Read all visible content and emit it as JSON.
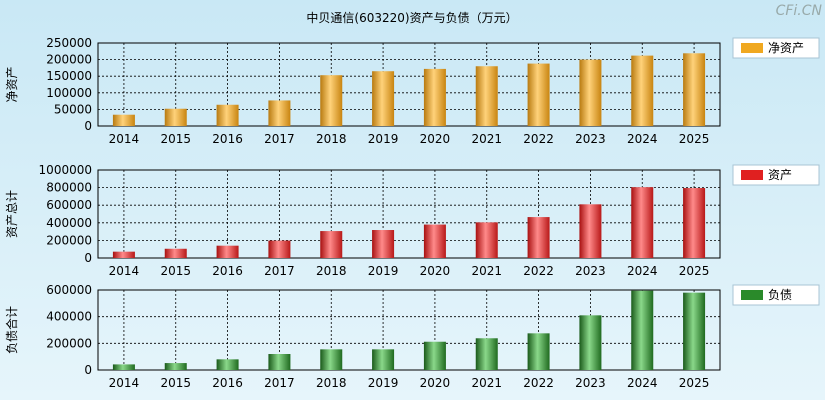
{
  "title": "中贝通信(603220)资产与负债（万元）",
  "watermark": "CFi.CN",
  "chart_data": [
    {
      "type": "bar",
      "ylabel": "净资产",
      "legend": "净资产",
      "legend_position": "right",
      "color": "#f0a820",
      "ylim": [
        0,
        250000
      ],
      "yticks": [
        0,
        50000,
        100000,
        150000,
        200000,
        250000
      ],
      "categories": [
        "2014",
        "2015",
        "2016",
        "2017",
        "2018",
        "2019",
        "2020",
        "2021",
        "2022",
        "2023",
        "2024",
        "2025"
      ],
      "values": [
        34000,
        52000,
        64000,
        77000,
        153000,
        165000,
        172000,
        180000,
        188000,
        200000,
        212000,
        219000
      ],
      "grid": true
    },
    {
      "type": "bar",
      "ylabel": "资产总计",
      "legend": "资产",
      "legend_position": "right",
      "color": "#e02020",
      "ylim": [
        0,
        1000000
      ],
      "yticks": [
        0,
        200000,
        400000,
        600000,
        800000,
        1000000
      ],
      "categories": [
        "2014",
        "2015",
        "2016",
        "2017",
        "2018",
        "2019",
        "2020",
        "2021",
        "2022",
        "2023",
        "2024",
        "2025"
      ],
      "values": [
        72000,
        105000,
        140000,
        198000,
        306000,
        318000,
        380000,
        405000,
        465000,
        610000,
        805000,
        795000
      ],
      "grid": true
    },
    {
      "type": "bar",
      "ylabel": "负债合计",
      "legend": "负债",
      "legend_position": "right",
      "color": "#2a8a2a",
      "ylim": [
        0,
        600000
      ],
      "yticks": [
        0,
        200000,
        400000,
        600000
      ],
      "categories": [
        "2014",
        "2015",
        "2016",
        "2017",
        "2018",
        "2019",
        "2020",
        "2021",
        "2022",
        "2023",
        "2024",
        "2025"
      ],
      "values": [
        42000,
        52000,
        80000,
        120000,
        155000,
        155000,
        212000,
        238000,
        275000,
        410000,
        595000,
        580000
      ],
      "grid": true
    }
  ]
}
